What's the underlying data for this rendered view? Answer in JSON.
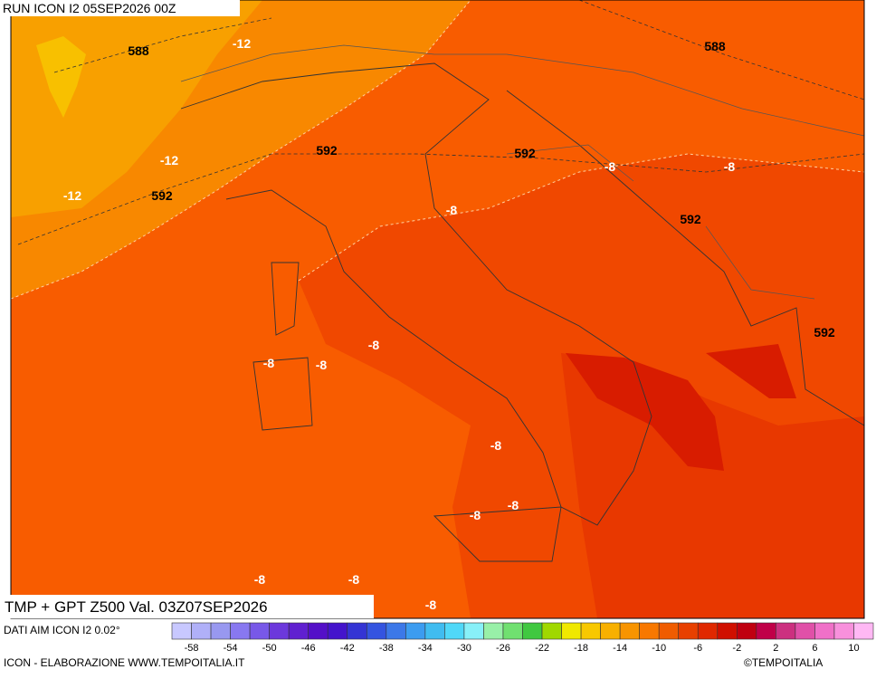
{
  "header": {
    "run": "RUN ICON I2 05SEP2026 00Z"
  },
  "map": {
    "labels": [
      "588",
      "-12",
      "588",
      "592",
      "592",
      "-8",
      "-8",
      "-12",
      "-12",
      "592",
      "-8",
      "592",
      "592",
      "-8",
      "-8",
      "-8",
      "-8",
      "-8",
      "-8",
      "-8",
      "-8",
      "-8"
    ]
  },
  "footer": {
    "title": "TMP + GPT Z500 Val. 03Z07SEP2026",
    "source": "DATI AIM ICON I2 0.02°",
    "credit": "ICON - ELABORAZIONE WWW.TEMPOITALIA.IT",
    "copyright": "©TEMPOITALIA"
  },
  "colorbar": {
    "colors": [
      "#c8c8ff",
      "#b0b0f8",
      "#9898f0",
      "#8878f0",
      "#7858e8",
      "#6c38dc",
      "#6020d0",
      "#5410c8",
      "#4414cc",
      "#3434d4",
      "#3454e0",
      "#3c78e8",
      "#3c9cf0",
      "#40bcf0",
      "#50d8f8",
      "#88f0f8",
      "#98f0a8",
      "#70e070",
      "#40c840",
      "#a0d800",
      "#f0e800",
      "#f8c800",
      "#f8b000",
      "#f89400",
      "#f87800",
      "#f05c00",
      "#e84000",
      "#e02800",
      "#d01000",
      "#c00010",
      "#c00048",
      "#cc3080",
      "#e050a8",
      "#f070c8",
      "#f890dc",
      "#ffb8f4"
    ],
    "ticks": [
      -58,
      -54,
      -50,
      -46,
      -42,
      -38,
      -34,
      -30,
      -26,
      -22,
      -18,
      -14,
      -10,
      -6,
      -2,
      2,
      6,
      10
    ]
  }
}
